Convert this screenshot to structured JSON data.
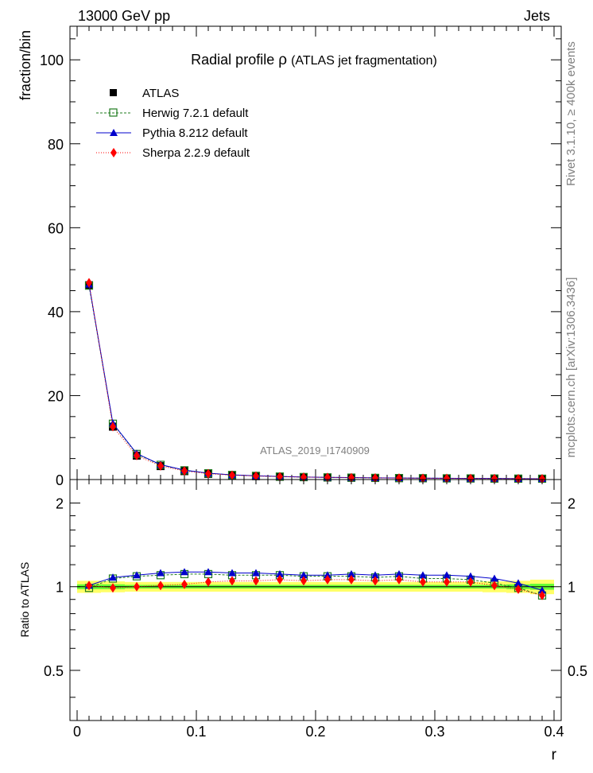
{
  "header": {
    "left_label": "13000 GeV pp",
    "right_label": "Jets"
  },
  "side_labels": {
    "rivet": "Rivet 3.1.10, ≥ 400k events",
    "mcplots": "mcplots.cern.ch [arXiv:1306.3436]"
  },
  "colors": {
    "atlas": "#000000",
    "herwig": "#1e7b1e",
    "pythia": "#0000cc",
    "sherpa": "#ff0000",
    "band_inner": "#66ff33",
    "band_outer": "#ffff66"
  },
  "chart_data": [
    {
      "type": "line",
      "title": "Radial profile",
      "title_symbol": "ρ",
      "title_suffix": "(ATLAS jet fragmentation)",
      "watermark": "ATLAS_2019_I1740909",
      "ylabel": "fraction/bin",
      "ylim": [
        0,
        108
      ],
      "yticks": [
        0,
        20,
        40,
        60,
        80,
        100
      ],
      "yticklabels": [
        "0",
        "20",
        "40",
        "60",
        "80",
        "100"
      ],
      "xlim": [
        -0.006,
        0.406
      ],
      "x": [
        0.01,
        0.03,
        0.05,
        0.07,
        0.09,
        0.11,
        0.13,
        0.15,
        0.17,
        0.19,
        0.21,
        0.23,
        0.25,
        0.27,
        0.29,
        0.31,
        0.33,
        0.35,
        0.37,
        0.39
      ],
      "legend_position": "top-left",
      "series": [
        {
          "name": "ATLAS",
          "marker": "square-filled",
          "values": [
            46.3,
            12.6,
            5.7,
            3.2,
            2.0,
            1.35,
            1.0,
            0.8,
            0.65,
            0.55,
            0.48,
            0.42,
            0.37,
            0.33,
            0.3,
            0.27,
            0.25,
            0.23,
            0.21,
            0.2
          ]
        },
        {
          "name": "Herwig 7.2.1 default",
          "marker": "square-open",
          "values": [
            46.2,
            13.3,
            6.1,
            3.5,
            2.2,
            1.5,
            1.1,
            0.88,
            0.72,
            0.6,
            0.52,
            0.46,
            0.4,
            0.36,
            0.32,
            0.29,
            0.27,
            0.24,
            0.21,
            0.19
          ]
        },
        {
          "name": "Pythia 8.212 default",
          "marker": "triangle",
          "values": [
            46.5,
            13.4,
            6.2,
            3.55,
            2.25,
            1.52,
            1.12,
            0.89,
            0.73,
            0.6,
            0.53,
            0.47,
            0.41,
            0.37,
            0.33,
            0.3,
            0.27,
            0.25,
            0.22,
            0.19
          ]
        },
        {
          "name": "Sherpa 2.2.9 default",
          "marker": "diamond",
          "values": [
            46.9,
            12.6,
            5.7,
            3.25,
            2.05,
            1.4,
            1.05,
            0.84,
            0.69,
            0.58,
            0.51,
            0.45,
            0.39,
            0.35,
            0.31,
            0.28,
            0.26,
            0.23,
            0.2,
            0.19
          ]
        }
      ]
    },
    {
      "type": "line",
      "title": "",
      "ylabel": "Ratio to ATLAS",
      "xlabel": "r",
      "ylim": [
        0.33,
        2.43
      ],
      "yticks": [
        0.5,
        1,
        2
      ],
      "yticklabels": [
        "0.5",
        "1",
        "2"
      ],
      "xlim": [
        -0.006,
        0.406
      ],
      "xticks": [
        0,
        0.1,
        0.2,
        0.3,
        0.4
      ],
      "xticklabels": [
        "0",
        "0.1",
        "0.2",
        "0.3",
        "0.4"
      ],
      "x": [
        0.01,
        0.03,
        0.05,
        0.07,
        0.09,
        0.11,
        0.13,
        0.15,
        0.17,
        0.19,
        0.21,
        0.23,
        0.25,
        0.27,
        0.29,
        0.31,
        0.33,
        0.35,
        0.37,
        0.39
      ],
      "band_inner_halfwidth": [
        0.02,
        0.02,
        0.015,
        0.015,
        0.015,
        0.015,
        0.015,
        0.015,
        0.015,
        0.015,
        0.015,
        0.015,
        0.015,
        0.015,
        0.015,
        0.015,
        0.015,
        0.015,
        0.02,
        0.025
      ],
      "band_outer_halfwidth": [
        0.05,
        0.045,
        0.04,
        0.04,
        0.04,
        0.04,
        0.04,
        0.04,
        0.04,
        0.04,
        0.04,
        0.04,
        0.04,
        0.04,
        0.04,
        0.04,
        0.04,
        0.045,
        0.05,
        0.06
      ],
      "series": [
        {
          "name": "Herwig 7.2.1 default",
          "values": [
            0.99,
            1.07,
            1.09,
            1.1,
            1.11,
            1.11,
            1.1,
            1.1,
            1.1,
            1.09,
            1.09,
            1.09,
            1.08,
            1.09,
            1.07,
            1.07,
            1.06,
            1.03,
            0.99,
            0.93
          ]
        },
        {
          "name": "Pythia 8.212 default",
          "values": [
            1.01,
            1.08,
            1.1,
            1.12,
            1.13,
            1.13,
            1.12,
            1.12,
            1.11,
            1.1,
            1.1,
            1.11,
            1.1,
            1.11,
            1.1,
            1.1,
            1.09,
            1.07,
            1.03,
            0.97
          ]
        },
        {
          "name": "Sherpa 2.2.9 default",
          "values": [
            1.01,
            0.99,
            1.0,
            1.01,
            1.02,
            1.04,
            1.05,
            1.05,
            1.06,
            1.05,
            1.06,
            1.06,
            1.05,
            1.06,
            1.04,
            1.04,
            1.04,
            1.01,
            0.98,
            0.93
          ]
        }
      ]
    }
  ]
}
